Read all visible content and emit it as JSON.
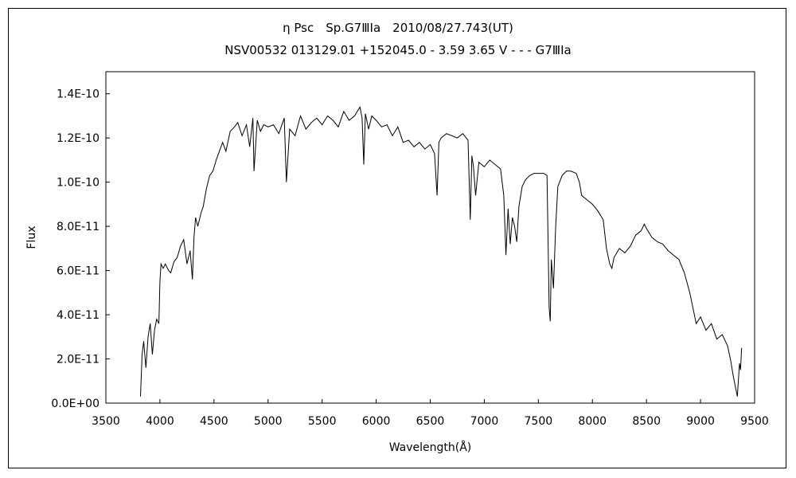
{
  "chart_data": {
    "type": "line",
    "title": "η Psc　Sp.G7ⅢIa　2010/08/27.743(UT)",
    "subtitle": "NSV00532 013129.01 +152045.0 - 3.59 3.65 V - - - G7ⅢIa",
    "xlabel": "Wavelength(Å)",
    "ylabel": "Flux",
    "xlim": [
      3500,
      9500
    ],
    "ylim": [
      0,
      1.5e-10
    ],
    "x_ticks": [
      "3500",
      "4000",
      "4500",
      "5000",
      "5500",
      "6000",
      "6500",
      "7000",
      "7500",
      "8000",
      "8500",
      "9000",
      "9500"
    ],
    "y_ticks": [
      "0.0E+00",
      "2.0E-11",
      "4.0E-11",
      "6.0E-11",
      "8.0E-11",
      "1.0E-10",
      "1.2E-10",
      "1.4E-10"
    ],
    "grid": false,
    "line_color": "#000000",
    "series": [
      {
        "x": [
          3820,
          3835,
          3850,
          3870,
          3890,
          3910,
          3930,
          3950,
          3970,
          3990,
          4000,
          4010,
          4030,
          4050,
          4080,
          4100,
          4130,
          4160,
          4190,
          4220,
          4250,
          4280,
          4300,
          4315,
          4330,
          4350,
          4380,
          4400,
          4430,
          4460,
          4490,
          4520,
          4550,
          4580,
          4610,
          4650,
          4690,
          4720,
          4760,
          4800,
          4830,
          4860,
          4870,
          4900,
          4930,
          4960,
          5000,
          5050,
          5100,
          5150,
          5170,
          5200,
          5250,
          5300,
          5350,
          5400,
          5450,
          5500,
          5550,
          5600,
          5650,
          5700,
          5750,
          5800,
          5850,
          5870,
          5885,
          5900,
          5930,
          5960,
          6000,
          6050,
          6100,
          6150,
          6200,
          6250,
          6300,
          6350,
          6400,
          6450,
          6500,
          6540,
          6563,
          6580,
          6600,
          6650,
          6700,
          6750,
          6800,
          6850,
          6870,
          6885,
          6900,
          6920,
          6950,
          7000,
          7050,
          7100,
          7150,
          7180,
          7200,
          7220,
          7240,
          7260,
          7280,
          7300,
          7320,
          7350,
          7380,
          7420,
          7460,
          7500,
          7550,
          7580,
          7600,
          7610,
          7620,
          7640,
          7660,
          7680,
          7720,
          7760,
          7800,
          7850,
          7880,
          7900,
          7950,
          8000,
          8050,
          8100,
          8130,
          8160,
          8180,
          8200,
          8250,
          8300,
          8350,
          8400,
          8450,
          8480,
          8500,
          8550,
          8600,
          8650,
          8700,
          8750,
          8800,
          8850,
          8900,
          8930,
          8960,
          9000,
          9050,
          9100,
          9150,
          9200,
          9250,
          9280,
          9300,
          9320,
          9340,
          9360,
          9370,
          9380
        ],
        "y": [
          3e-12,
          2.2e-11,
          2.8e-11,
          1.6e-11,
          3e-11,
          3.6e-11,
          2.2e-11,
          3.3e-11,
          3.8e-11,
          3.6e-11,
          5.5e-11,
          6.3e-11,
          6.1e-11,
          6.3e-11,
          6e-11,
          5.9e-11,
          6.4e-11,
          6.6e-11,
          7.1e-11,
          7.4e-11,
          6.3e-11,
          6.9e-11,
          5.6e-11,
          7.5e-11,
          8.4e-11,
          8e-11,
          8.6e-11,
          8.9e-11,
          9.7e-11,
          1.03e-10,
          1.05e-10,
          1.1e-10,
          1.14e-10,
          1.18e-10,
          1.14e-10,
          1.23e-10,
          1.25e-10,
          1.27e-10,
          1.21e-10,
          1.26e-10,
          1.16e-10,
          1.29e-10,
          1.05e-10,
          1.28e-10,
          1.23e-10,
          1.26e-10,
          1.25e-10,
          1.26e-10,
          1.22e-10,
          1.29e-10,
          1e-10,
          1.24e-10,
          1.21e-10,
          1.3e-10,
          1.24e-10,
          1.27e-10,
          1.29e-10,
          1.26e-10,
          1.3e-10,
          1.28e-10,
          1.25e-10,
          1.32e-10,
          1.28e-10,
          1.3e-10,
          1.34e-10,
          1.29e-10,
          1.08e-10,
          1.31e-10,
          1.24e-10,
          1.3e-10,
          1.28e-10,
          1.25e-10,
          1.26e-10,
          1.21e-10,
          1.25e-10,
          1.18e-10,
          1.19e-10,
          1.16e-10,
          1.18e-10,
          1.15e-10,
          1.17e-10,
          1.13e-10,
          9.4e-11,
          1.18e-10,
          1.2e-10,
          1.22e-10,
          1.21e-10,
          1.2e-10,
          1.22e-10,
          1.19e-10,
          8.3e-11,
          1.12e-10,
          1.07e-10,
          9.4e-11,
          1.09e-10,
          1.07e-10,
          1.1e-10,
          1.08e-10,
          1.06e-10,
          9.4e-11,
          6.7e-11,
          8.8e-11,
          7.2e-11,
          8.4e-11,
          8e-11,
          7.3e-11,
          8.9e-11,
          9.8e-11,
          1.01e-10,
          1.03e-10,
          1.04e-10,
          1.04e-10,
          1.04e-10,
          1.03e-10,
          4.3e-11,
          3.7e-11,
          6.5e-11,
          5.2e-11,
          8e-11,
          9.8e-11,
          1.03e-10,
          1.05e-10,
          1.05e-10,
          1.04e-10,
          1e-10,
          9.4e-11,
          9.2e-11,
          9e-11,
          8.7e-11,
          8.3e-11,
          7e-11,
          6.3e-11,
          6.1e-11,
          6.6e-11,
          7e-11,
          6.8e-11,
          7.1e-11,
          7.6e-11,
          7.8e-11,
          8.1e-11,
          7.9e-11,
          7.5e-11,
          7.3e-11,
          7.2e-11,
          6.9e-11,
          6.7e-11,
          6.5e-11,
          5.9e-11,
          5e-11,
          4.3e-11,
          3.6e-11,
          3.9e-11,
          3.3e-11,
          3.6e-11,
          2.9e-11,
          3.1e-11,
          2.6e-11,
          1.9e-11,
          1.3e-11,
          8e-12,
          3e-12,
          1.8e-11,
          1.5e-11,
          2.5e-11
        ]
      }
    ]
  }
}
